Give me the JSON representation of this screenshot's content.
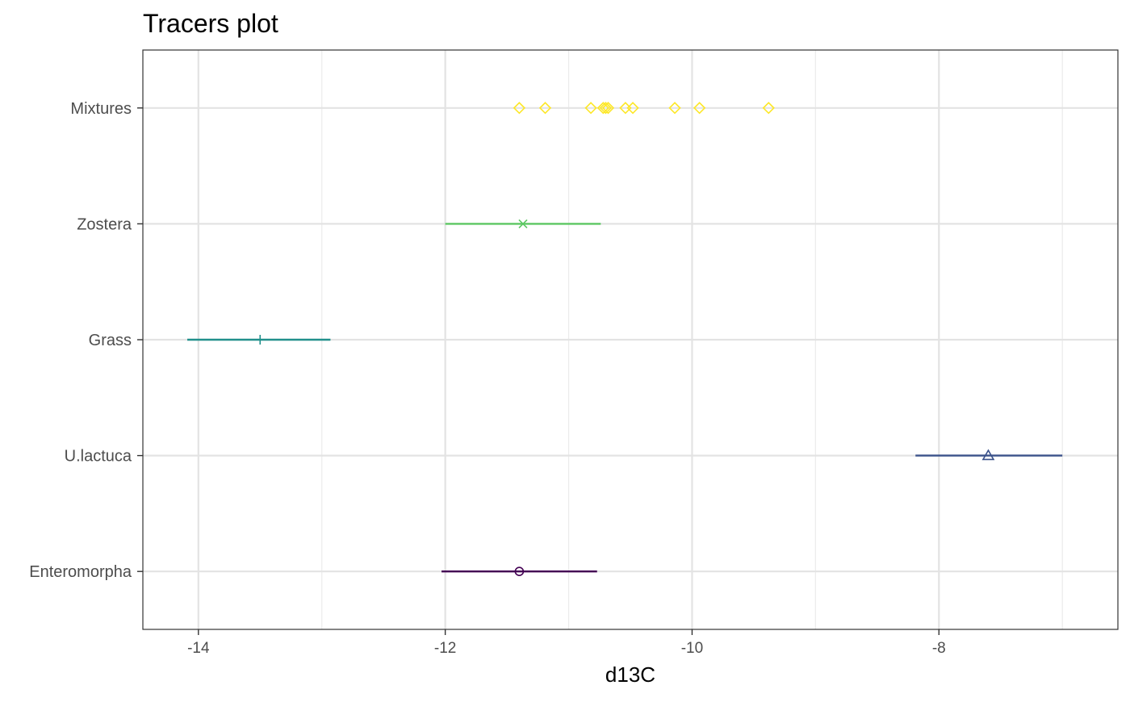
{
  "chart_data": {
    "type": "scatter",
    "title": "Tracers plot",
    "xlabel": "d13C",
    "ylabel": "",
    "xlim": [
      -14.45,
      -6.55
    ],
    "x_ticks": [
      -14,
      -12,
      -10,
      -8
    ],
    "x_tick_labels": [
      "-14",
      "-12",
      "-10",
      "-8"
    ],
    "categories": [
      "Enteromorpha",
      "U.lactuca",
      "Grass",
      "Zostera",
      "Mixtures"
    ],
    "grid": true,
    "legend": "none",
    "sources": [
      {
        "name": "Enteromorpha",
        "mean": -11.4,
        "low": -12.03,
        "high": -10.77,
        "marker": "circle",
        "color": "#440154"
      },
      {
        "name": "U.lactuca",
        "mean": -7.6,
        "low": -8.19,
        "high": -7.0,
        "marker": "triangle",
        "color": "#3B528B"
      },
      {
        "name": "Grass",
        "mean": -13.5,
        "low": -14.09,
        "high": -12.93,
        "marker": "plus",
        "color": "#21908C"
      },
      {
        "name": "Zostera",
        "mean": -11.37,
        "low": -12.0,
        "high": -10.74,
        "marker": "cross",
        "color": "#5DC863"
      }
    ],
    "mixtures": {
      "name": "Mixtures",
      "marker": "diamond",
      "color": "#FDE725",
      "values": [
        -11.4,
        -11.19,
        -10.82,
        -10.72,
        -10.7,
        -10.68,
        -10.54,
        -10.48,
        -10.14,
        -9.94,
        -9.38
      ]
    }
  }
}
